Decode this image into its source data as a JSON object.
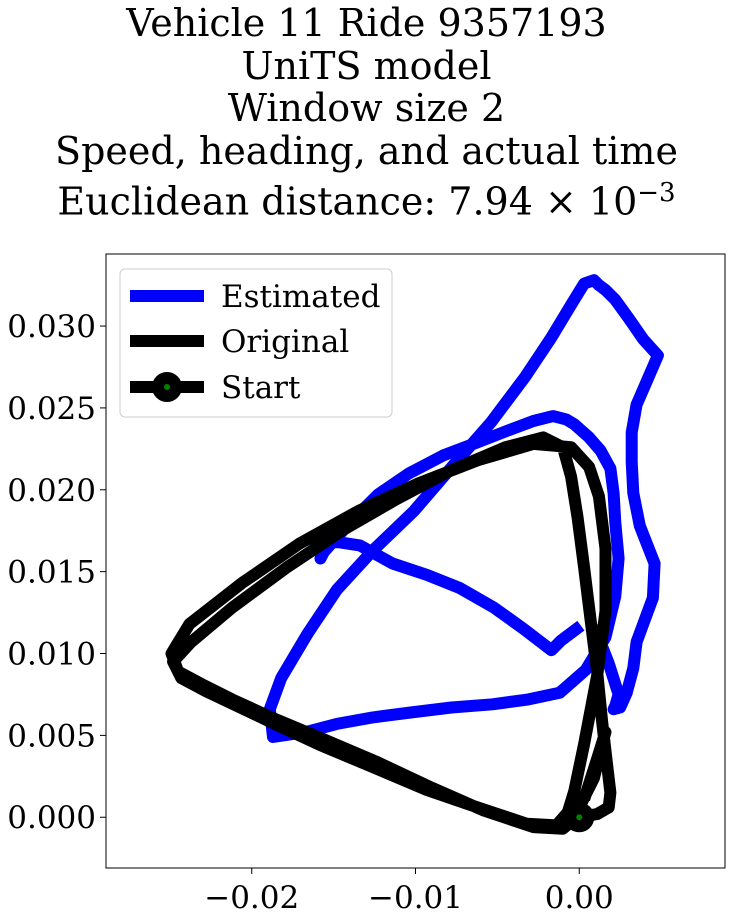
{
  "chart_data": {
    "type": "line",
    "title_lines": [
      "Vehicle 11 Ride 9357193",
      "UniTS model",
      "Window size 2",
      "Speed, heading, and actual time"
    ],
    "title_metric_label": "Euclidean distance: ",
    "title_metric_mantissa": "7.94 × 10",
    "title_metric_exponent": "−3",
    "xlim": [
      -0.0289,
      0.0089
    ],
    "ylim": [
      -0.0031,
      0.0344
    ],
    "x_ticks": [
      -0.02,
      -0.01,
      0.0
    ],
    "x_tick_labels": [
      "−0.02",
      "−0.01",
      "0.00"
    ],
    "y_ticks": [
      0.0,
      0.005,
      0.01,
      0.015,
      0.02,
      0.025,
      0.03
    ],
    "y_tick_labels": [
      "0.000",
      "0.005",
      "0.010",
      "0.015",
      "0.020",
      "0.025",
      "0.030"
    ],
    "grid": false,
    "legend_position": "upper-left",
    "legend": [
      {
        "label": "Estimated",
        "color": "#0000ff"
      },
      {
        "label": "Original",
        "color": "#000000"
      },
      {
        "label": "Start",
        "color": "#000000",
        "marker_face": "#008000"
      }
    ],
    "series": [
      {
        "name": "Estimated",
        "color": "#0000ff",
        "x": [
          0.0001,
          -0.0011,
          -0.0017,
          -0.0034,
          -0.0052,
          -0.0073,
          -0.0093,
          -0.0114,
          -0.0134,
          -0.0147,
          -0.0156,
          -0.0158,
          -0.0156,
          -0.0148,
          -0.0138,
          -0.0123,
          -0.0104,
          -0.0083,
          -0.0062,
          -0.0044,
          -0.0028,
          -0.0016,
          -0.0008,
          -0.0003,
          0.0006,
          0.0013,
          0.0019,
          0.0021,
          0.0022,
          0.0024,
          0.0022,
          0.0016,
          0.0004,
          -0.0012,
          -0.0031,
          -0.0053,
          -0.0078,
          -0.0103,
          -0.0126,
          -0.0148,
          -0.0167,
          -0.0187,
          -0.0189,
          -0.0182,
          -0.0166,
          -0.0148,
          -0.0126,
          -0.0101,
          -0.0076,
          -0.0054,
          -0.0033,
          -0.0017,
          -0.0005,
          0.0003,
          0.0009,
          0.0012,
          0.0016,
          0.0022,
          0.003,
          0.0039,
          0.0048,
          0.0042,
          0.0035,
          0.0032,
          0.0032,
          0.0033,
          0.0037,
          0.0046,
          0.0045,
          0.0035,
          0.0033,
          0.0029,
          0.0025,
          0.0021,
          0.0022,
          0.0024,
          0.0018,
          0.0009
        ],
        "y": [
          0.0117,
          0.0108,
          0.0102,
          0.0115,
          0.0128,
          0.014,
          0.0148,
          0.0155,
          0.0166,
          0.0168,
          0.0168,
          0.0158,
          0.0162,
          0.0171,
          0.0182,
          0.0197,
          0.021,
          0.0221,
          0.0229,
          0.0236,
          0.0242,
          0.0245,
          0.0243,
          0.024,
          0.0232,
          0.0224,
          0.0213,
          0.0198,
          0.018,
          0.0158,
          0.0135,
          0.011,
          0.009,
          0.0076,
          0.0072,
          0.0069,
          0.0067,
          0.0064,
          0.0061,
          0.0057,
          0.0052,
          0.0049,
          0.0066,
          0.0085,
          0.0112,
          0.0139,
          0.0163,
          0.0187,
          0.0216,
          0.0241,
          0.0269,
          0.0293,
          0.0313,
          0.0326,
          0.0328,
          0.0325,
          0.0322,
          0.0316,
          0.0305,
          0.0292,
          0.0282,
          0.0268,
          0.0252,
          0.0235,
          0.0217,
          0.0198,
          0.0178,
          0.0155,
          0.0134,
          0.0107,
          0.0091,
          0.0076,
          0.0067,
          0.0066,
          0.0068,
          0.0075,
          0.0094,
          0.0117
        ]
      },
      {
        "name": "Original",
        "color": "#000000",
        "x": [
          0.0,
          0.0011,
          0.0018,
          0.0019,
          0.0017,
          0.0014,
          0.0011,
          0.0007,
          0.0003,
          -0.0001,
          -0.0005,
          -0.001,
          -0.0022,
          -0.0045,
          -0.0078,
          -0.0112,
          -0.0145,
          -0.0178,
          -0.0212,
          -0.0237,
          -0.0248,
          -0.0243,
          -0.0228,
          -0.0209,
          -0.0186,
          -0.0158,
          -0.0127,
          -0.0094,
          -0.0062,
          -0.0032,
          -0.0014,
          -0.0007,
          -0.0003,
          0.0003,
          0.0011,
          0.0016,
          0.0016,
          0.0012,
          0.0006,
          -0.0005,
          -0.0028,
          -0.0062,
          -0.0098,
          -0.0135,
          -0.0171,
          -0.0206,
          -0.0238,
          -0.0249,
          -0.0245,
          -0.023,
          -0.0212,
          -0.0188,
          -0.0157,
          -0.0124,
          -0.009,
          -0.0058,
          -0.0028,
          -0.001,
          -0.0004,
          0.0001,
          0.0009,
          0.0014,
          0.0016,
          0.0011,
          0.0003
        ],
        "y": [
          0.0,
          0.0002,
          0.0006,
          0.0015,
          0.0032,
          0.0058,
          0.0088,
          0.012,
          0.0152,
          0.0183,
          0.0208,
          0.0226,
          0.0232,
          0.0226,
          0.0212,
          0.0194,
          0.0175,
          0.0153,
          0.0128,
          0.0107,
          0.0095,
          0.0085,
          0.0077,
          0.0068,
          0.0057,
          0.0044,
          0.0031,
          0.0017,
          0.0006,
          -0.0004,
          -0.0005,
          0.0003,
          0.0016,
          0.0045,
          0.0087,
          0.0126,
          0.0164,
          0.0196,
          0.0214,
          0.0226,
          0.0228,
          0.0218,
          0.0204,
          0.0187,
          0.0167,
          0.0143,
          0.0118,
          0.01,
          0.0089,
          0.0081,
          0.0072,
          0.0061,
          0.0048,
          0.0034,
          0.0018,
          0.0004,
          -0.0006,
          -0.0007,
          -0.0002,
          0.0008,
          0.0024,
          0.0045,
          0.0052,
          0.0036,
          0.0011
        ]
      }
    ],
    "start_point": {
      "x": 0.0,
      "y": 0.0
    }
  }
}
